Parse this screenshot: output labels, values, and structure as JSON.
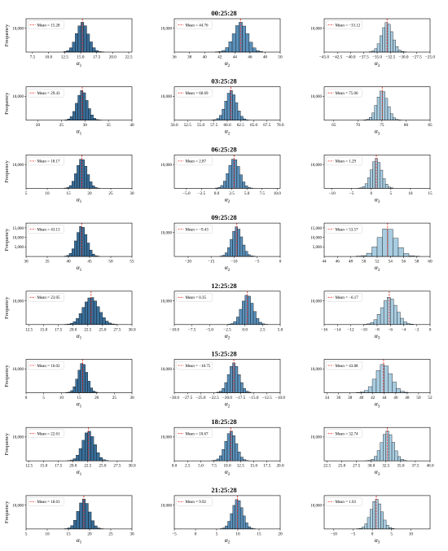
{
  "figure": {
    "ylabel": "Frequency",
    "mean_label_prefix": "Mean = ",
    "colors": {
      "col1": "#3a6f9a",
      "col2": "#5b90ba",
      "col3": "#a8cce0",
      "mean_line": "#e8312c",
      "edge": "#000000"
    },
    "rows": [
      {
        "title": "00:25:28",
        "panels": [
          {
            "xlabel": "α1",
            "mean": "15.28",
            "xlim": [
              6.5,
              23.0
            ],
            "ticks": [
              7.5,
              10.0,
              12.5,
              15.0,
              17.5,
              20.0,
              22.5
            ],
            "ymax": 14000,
            "yticks": [
              10000
            ],
            "bin_width": 0.45,
            "center": 15.28,
            "sigma": 0.9,
            "peak": 12500
          },
          {
            "xlabel": "α2",
            "mean": "44.76",
            "xlim": [
              36,
              50
            ],
            "ticks": [
              36,
              38,
              40,
              42,
              44,
              46,
              48,
              50
            ],
            "ymax": 14000,
            "yticks": [
              10000
            ],
            "bin_width": 0.45,
            "center": 44.76,
            "sigma": 0.9,
            "peak": 12500
          },
          {
            "xlabel": "α3",
            "mean": "−33.12",
            "xlim": [
              -45,
              -25
            ],
            "ticks": [
              -45.0,
              -42.5,
              -40.0,
              -37.5,
              -35.0,
              -32.5,
              -30.0,
              -27.5,
              -25.0
            ],
            "ymax": 14000,
            "yticks": [
              10000
            ],
            "bin_width": 0.5,
            "center": -33.12,
            "sigma": 1.0,
            "peak": 12500
          }
        ]
      },
      {
        "title": "03:25:28",
        "panels": [
          {
            "xlabel": "α1",
            "mean": "29.43",
            "xlim": [
              17.5,
              40
            ],
            "ticks": [
              20,
              25,
              30,
              35,
              40
            ],
            "ymax": 14000,
            "yticks": [
              10000
            ],
            "bin_width": 0.55,
            "center": 29.43,
            "sigma": 1.1,
            "peak": 12500
          },
          {
            "xlabel": "α2",
            "mean": "60.69",
            "xlim": [
              50,
              70
            ],
            "ticks": [
              50.0,
              52.5,
              55.0,
              57.5,
              60.0,
              62.5,
              65.0,
              67.5,
              70.0
            ],
            "ymax": 14000,
            "yticks": [
              10000
            ],
            "bin_width": 0.5,
            "center": 60.69,
            "sigma": 1.0,
            "peak": 12500
          },
          {
            "xlabel": "α3",
            "mean": "75.06",
            "xlim": [
              63,
              85
            ],
            "ticks": [
              65,
              70,
              75,
              80,
              85
            ],
            "ymax": 14000,
            "yticks": [
              10000
            ],
            "bin_width": 0.55,
            "center": 75.06,
            "sigma": 1.1,
            "peak": 12500
          }
        ]
      },
      {
        "title": "06:25:28",
        "panels": [
          {
            "xlabel": "α1",
            "mean": "18.17",
            "xlim": [
              5,
              30
            ],
            "ticks": [
              5,
              10,
              15,
              20,
              25,
              30
            ],
            "ymax": 14000,
            "yticks": [
              10000
            ],
            "bin_width": 0.6,
            "center": 18.17,
            "sigma": 1.2,
            "peak": 12500
          },
          {
            "xlabel": "α2",
            "mean": "2.87",
            "xlim": [
              -7,
              10.5
            ],
            "ticks": [
              -5.0,
              -2.5,
              0.0,
              2.5,
              5.0,
              7.5,
              10.0
            ],
            "ymax": 14000,
            "yticks": [
              10000
            ],
            "bin_width": 0.45,
            "center": 2.87,
            "sigma": 0.9,
            "peak": 12500
          },
          {
            "xlabel": "α3",
            "mean": "1.29",
            "xlim": [
              -12,
              15
            ],
            "ticks": [
              -10,
              -5,
              0,
              5,
              10,
              15
            ],
            "ymax": 14000,
            "yticks": [
              10000
            ],
            "bin_width": 0.65,
            "center": 1.29,
            "sigma": 1.3,
            "peak": 12500
          }
        ]
      },
      {
        "title": "09:25:28",
        "panels": [
          {
            "xlabel": "α1",
            "mean": "43.13",
            "xlim": [
              30,
              55
            ],
            "ticks": [
              30,
              35,
              40,
              45,
              50,
              55
            ],
            "ymax": 17500,
            "yticks": [
              5000,
              10000,
              15000
            ],
            "bin_width": 0.6,
            "center": 43.13,
            "sigma": 1.2,
            "peak": 16000
          },
          {
            "xlabel": "α2",
            "mean": "−9.43",
            "xlim": [
              -23,
              0
            ],
            "ticks": [
              -20,
              -15,
              -10,
              -5,
              0
            ],
            "ymax": 14000,
            "yticks": [
              10000
            ],
            "bin_width": 0.55,
            "center": -9.43,
            "sigma": 1.1,
            "peak": 12500
          },
          {
            "xlabel": "α3",
            "mean": "53.57",
            "xlim": [
              44,
              60
            ],
            "ticks": [
              44,
              46,
              48,
              50,
              52,
              54,
              56,
              58,
              60
            ],
            "ymax": 17500,
            "yticks": [
              5000,
              10000,
              15000
            ],
            "bin_width": 0.8,
            "center": 53.57,
            "sigma": 1.3,
            "peak": 15000
          }
        ]
      },
      {
        "title": "12:25:28",
        "panels": [
          {
            "xlabel": "α1",
            "mean": "23.05",
            "xlim": [
              12,
              30
            ],
            "ticks": [
              12.5,
              15.0,
              17.5,
              20.0,
              22.5,
              25.0,
              27.5,
              30.0
            ],
            "ymax": 14000,
            "yticks": [
              10000
            ],
            "bin_width": 0.5,
            "center": 23.05,
            "sigma": 1.3,
            "peak": 11500
          },
          {
            "xlabel": "α2",
            "mean": "0.35",
            "xlim": [
              -10,
              5
            ],
            "ticks": [
              -10.0,
              -7.5,
              -5.0,
              -2.5,
              0.0,
              2.5,
              5.0
            ],
            "ymax": 14000,
            "yticks": [
              10000
            ],
            "bin_width": 0.4,
            "center": 0.35,
            "sigma": 0.8,
            "peak": 12500
          },
          {
            "xlabel": "α3",
            "mean": "−6.17",
            "xlim": [
              -16,
              0
            ],
            "ticks": [
              -16,
              -14,
              -12,
              -10,
              -8,
              -6,
              -4,
              -2,
              0
            ],
            "ymax": 14000,
            "yticks": [
              10000
            ],
            "bin_width": 0.5,
            "center": -6.17,
            "sigma": 1.1,
            "peak": 11500
          }
        ]
      },
      {
        "title": "15:25:28",
        "panels": [
          {
            "xlabel": "α1",
            "mean": "16.02",
            "xlim": [
              0,
              30
            ],
            "ticks": [
              0,
              5,
              10,
              15,
              20,
              25,
              30
            ],
            "ymax": 14000,
            "yticks": [
              10000
            ],
            "bin_width": 0.7,
            "center": 16.02,
            "sigma": 1.3,
            "peak": 12500
          },
          {
            "xlabel": "α2",
            "mean": "−18.75",
            "xlim": [
              -30,
              -10
            ],
            "ticks": [
              -30.0,
              -27.5,
              -25.0,
              -22.5,
              -20.0,
              -17.5,
              -15.0,
              -12.5,
              -10.0
            ],
            "ymax": 14000,
            "yticks": [
              10000
            ],
            "bin_width": 0.5,
            "center": -18.75,
            "sigma": 1.0,
            "peak": 12500
          },
          {
            "xlabel": "α3",
            "mean": "43.88",
            "xlim": [
              33.5,
              52
            ],
            "ticks": [
              34,
              36,
              38,
              40,
              42,
              44,
              46,
              48,
              50,
              52
            ],
            "ymax": 14000,
            "yticks": [
              10000
            ],
            "bin_width": 0.7,
            "center": 43.88,
            "sigma": 1.3,
            "peak": 12000
          }
        ]
      },
      {
        "title": "18:25:28",
        "panels": [
          {
            "xlabel": "α1",
            "mean": "22.61",
            "xlim": [
              12,
              30
            ],
            "ticks": [
              12.5,
              15.0,
              17.5,
              20.0,
              22.5,
              25.0,
              27.5,
              30.0
            ],
            "ymax": 14000,
            "yticks": [
              10000
            ],
            "bin_width": 0.5,
            "center": 22.61,
            "sigma": 1.0,
            "peak": 12500
          },
          {
            "xlabel": "α2",
            "mean": "10.67",
            "xlim": [
              0,
              20
            ],
            "ticks": [
              0.0,
              2.5,
              5.0,
              7.5,
              10.0,
              12.5,
              15.0,
              17.5,
              20.0
            ],
            "ymax": 14000,
            "yticks": [
              10000
            ],
            "bin_width": 0.5,
            "center": 10.67,
            "sigma": 1.0,
            "peak": 12500
          },
          {
            "xlabel": "α3",
            "mean": "32.74",
            "xlim": [
              22,
              40
            ],
            "ticks": [
              22.5,
              25.0,
              27.5,
              30.0,
              32.5,
              35.0,
              37.5,
              40.0
            ],
            "ymax": 14000,
            "yticks": [
              10000
            ],
            "bin_width": 0.5,
            "center": 32.74,
            "sigma": 1.0,
            "peak": 12500
          }
        ]
      },
      {
        "title": "21:25:28",
        "panels": [
          {
            "xlabel": "α1",
            "mean": "18.63",
            "xlim": [
              5,
              30
            ],
            "ticks": [
              5,
              10,
              15,
              20,
              25,
              30
            ],
            "ymax": 14000,
            "yticks": [
              10000
            ],
            "bin_width": 0.7,
            "center": 18.63,
            "sigma": 1.3,
            "peak": 12500
          },
          {
            "xlabel": "α2",
            "mean": "9.92",
            "xlim": [
              -5,
              20
            ],
            "ticks": [
              -5,
              0,
              5,
              10,
              15,
              20
            ],
            "ymax": 14000,
            "yticks": [
              10000
            ],
            "bin_width": 0.6,
            "center": 9.92,
            "sigma": 1.2,
            "peak": 12500
          },
          {
            "xlabel": "α3",
            "mean": "1.03",
            "xlim": [
              -12.5,
              15
            ],
            "ticks": [
              -10,
              -5,
              0,
              5,
              10
            ],
            "ymax": 14000,
            "yticks": [
              10000
            ],
            "bin_width": 0.7,
            "center": 1.03,
            "sigma": 1.4,
            "peak": 12500
          }
        ]
      }
    ]
  },
  "chart_data": [
    {
      "type": "bar",
      "title": "00:25:28",
      "xlabel": "α1",
      "ylabel": "Frequency",
      "legend": "Mean = 15.28",
      "xlim": [
        6.5,
        23.0
      ],
      "mean": 15.28
    },
    {
      "type": "bar",
      "title": "00:25:28",
      "xlabel": "α2",
      "legend": "Mean = 44.76",
      "xlim": [
        36,
        50
      ],
      "mean": 44.76
    },
    {
      "type": "bar",
      "title": "00:25:28",
      "xlabel": "α3",
      "legend": "Mean = −33.12",
      "xlim": [
        -45,
        -25
      ],
      "mean": -33.12
    },
    {
      "type": "bar",
      "title": "03:25:28",
      "xlabel": "α1",
      "ylabel": "Frequency",
      "legend": "Mean = 29.43",
      "mean": 29.43
    },
    {
      "type": "bar",
      "title": "03:25:28",
      "xlabel": "α2",
      "legend": "Mean = 60.69",
      "mean": 60.69
    },
    {
      "type": "bar",
      "title": "03:25:28",
      "xlabel": "α3",
      "legend": "Mean = 75.06",
      "mean": 75.06
    },
    {
      "type": "bar",
      "title": "06:25:28",
      "xlabel": "α1",
      "ylabel": "Frequency",
      "legend": "Mean = 18.17",
      "mean": 18.17
    },
    {
      "type": "bar",
      "title": "06:25:28",
      "xlabel": "α2",
      "legend": "Mean = 2.87",
      "mean": 2.87
    },
    {
      "type": "bar",
      "title": "06:25:28",
      "xlabel": "α3",
      "legend": "Mean = 1.29",
      "mean": 1.29
    },
    {
      "type": "bar",
      "title": "09:25:28",
      "xlabel": "α1",
      "ylabel": "Frequency",
      "legend": "Mean = 43.13",
      "mean": 43.13
    },
    {
      "type": "bar",
      "title": "09:25:28",
      "xlabel": "α2",
      "legend": "Mean = −9.43",
      "mean": -9.43
    },
    {
      "type": "bar",
      "title": "09:25:28",
      "xlabel": "α3",
      "legend": "Mean = 53.57",
      "mean": 53.57
    },
    {
      "type": "bar",
      "title": "12:25:28",
      "xlabel": "α1",
      "ylabel": "Frequency",
      "legend": "Mean = 23.05",
      "mean": 23.05
    },
    {
      "type": "bar",
      "title": "12:25:28",
      "xlabel": "α2",
      "legend": "Mean = 0.35",
      "mean": 0.35
    },
    {
      "type": "bar",
      "title": "12:25:28",
      "xlabel": "α3",
      "legend": "Mean = −6.17",
      "mean": -6.17
    },
    {
      "type": "bar",
      "title": "15:25:28",
      "xlabel": "α1",
      "ylabel": "Frequency",
      "legend": "Mean = 16.02",
      "mean": 16.02
    },
    {
      "type": "bar",
      "title": "15:25:28",
      "xlabel": "α2",
      "legend": "Mean = −18.75",
      "mean": -18.75
    },
    {
      "type": "bar",
      "title": "15:25:28",
      "xlabel": "α3",
      "legend": "Mean = 43.88",
      "mean": 43.88
    },
    {
      "type": "bar",
      "title": "18:25:28",
      "xlabel": "α1",
      "ylabel": "Frequency",
      "legend": "Mean = 22.61",
      "mean": 22.61
    },
    {
      "type": "bar",
      "title": "18:25:28",
      "xlabel": "α2",
      "legend": "Mean = 10.67",
      "mean": 10.67
    },
    {
      "type": "bar",
      "title": "18:25:28",
      "xlabel": "α3",
      "legend": "Mean = 32.74",
      "mean": 32.74
    },
    {
      "type": "bar",
      "title": "21:25:28",
      "xlabel": "α1",
      "ylabel": "Frequency",
      "legend": "Mean = 18.63",
      "mean": 18.63
    },
    {
      "type": "bar",
      "title": "21:25:28",
      "xlabel": "α2",
      "legend": "Mean = 9.92",
      "mean": 9.92
    },
    {
      "type": "bar",
      "title": "21:25:28",
      "xlabel": "α3",
      "legend": "Mean = 1.03",
      "mean": 1.03
    }
  ]
}
